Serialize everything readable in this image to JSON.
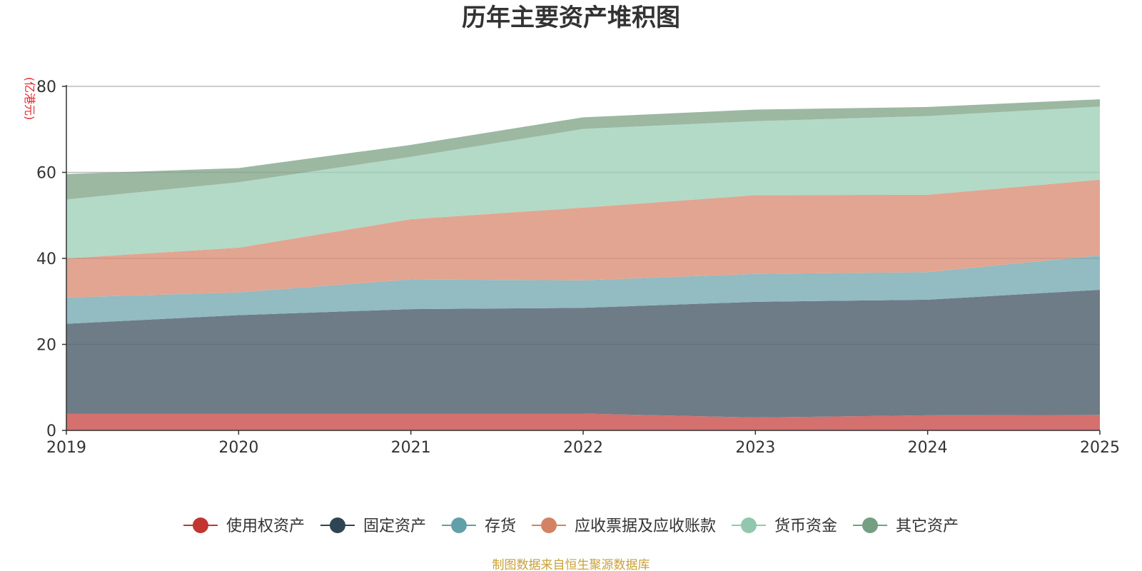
{
  "chart_data": {
    "type": "area",
    "stacked": true,
    "title": "历年主要资产堆积图",
    "unit_label": "(亿港元)",
    "ylabel": "",
    "xlabel": "",
    "categories": [
      "2019",
      "2020",
      "2021",
      "2022",
      "2023",
      "2024",
      "2025"
    ],
    "ylim": [
      0,
      80
    ],
    "yticks": [
      0,
      20,
      40,
      60,
      80
    ],
    "ytick_labels": [
      "0",
      "20",
      "40",
      "60",
      "80"
    ],
    "series": [
      {
        "name": "使用权资产",
        "color": "#d4706d",
        "legend_color": "#c23531",
        "values": [
          3.9,
          3.9,
          3.9,
          3.9,
          3.0,
          3.5,
          3.6
        ]
      },
      {
        "name": "固定资产",
        "color": "#6e7c88",
        "legend_color": "#2f4554",
        "values": [
          20.9,
          22.9,
          24.3,
          24.6,
          26.9,
          26.9,
          29.1
        ]
      },
      {
        "name": "存货",
        "color": "#92bbc2",
        "legend_color": "#61a0a8",
        "values": [
          6.1,
          5.3,
          6.9,
          6.4,
          6.5,
          6.4,
          8.0
        ]
      },
      {
        "name": "应收票据及应收账款",
        "color": "#e2a591",
        "legend_color": "#d48265",
        "values": [
          9.1,
          10.4,
          14.0,
          16.9,
          18.3,
          18.0,
          17.6
        ]
      },
      {
        "name": "货币资金",
        "color": "#b2dac7",
        "legend_color": "#91c7ae",
        "values": [
          13.7,
          15.2,
          14.5,
          18.3,
          17.2,
          18.3,
          17.0
        ]
      },
      {
        "name": "其它资产",
        "color": "#9cb8a1",
        "legend_color": "#749f83",
        "values": [
          5.9,
          3.3,
          2.8,
          2.7,
          2.7,
          2.1,
          1.7
        ]
      }
    ],
    "grid": true,
    "legend_position": "bottom-center",
    "source_note": "制图数据来自恒生聚源数据库"
  }
}
